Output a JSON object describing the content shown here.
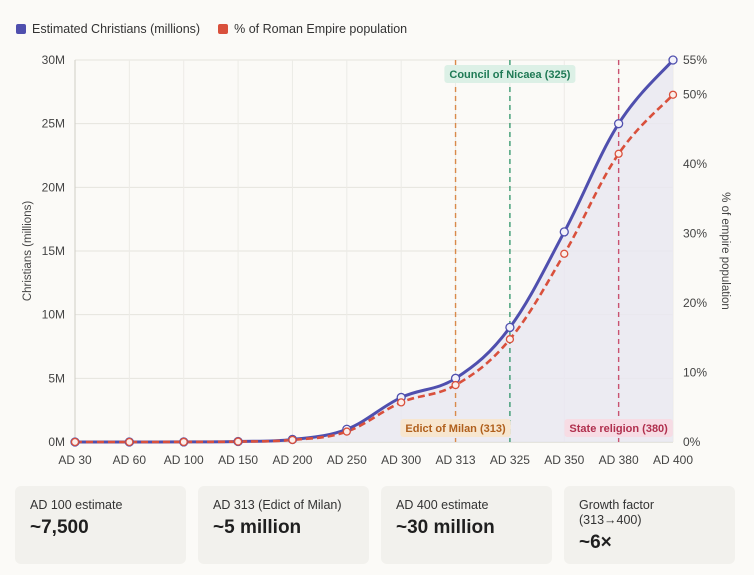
{
  "legend": {
    "items": [
      {
        "label": "Estimated Christians (millions)",
        "color": "#4f4fae"
      },
      {
        "label": "% of Roman Empire population",
        "color": "#d9503c"
      }
    ]
  },
  "chart_data": {
    "type": "line",
    "categories": [
      "AD 30",
      "AD 60",
      "AD 100",
      "AD 150",
      "AD 200",
      "AD 250",
      "AD 300",
      "AD 313",
      "AD 325",
      "AD 350",
      "AD 380",
      "AD 400"
    ],
    "series": [
      {
        "name": "Estimated Christians (millions)",
        "axis": "left",
        "color": "#4f4fae",
        "fill": "#e9e8f1",
        "style": "solid",
        "values": [
          1e-05,
          1e-05,
          0.0075,
          0.04,
          0.2,
          1.0,
          3.5,
          5,
          9,
          16.5,
          25,
          30
        ]
      },
      {
        "name": "% of Roman Empire population",
        "axis": "right",
        "color": "#d9503c",
        "style": "dashed",
        "values": [
          0,
          0,
          0.01,
          0.06,
          0.3,
          1.5,
          5.7,
          8.2,
          14.8,
          27.1,
          41.5,
          50
        ]
      }
    ],
    "ylabel": "Christians (millions)",
    "y2label": "% of empire population",
    "ylim": [
      0,
      30
    ],
    "y2lim": [
      0,
      55
    ],
    "yticks": [
      "0M",
      "5M",
      "10M",
      "15M",
      "20M",
      "25M",
      "30M"
    ],
    "y2ticks": [
      "0%",
      "10%",
      "20%",
      "30%",
      "40%",
      "50%",
      "55%"
    ],
    "annotations": [
      {
        "label": "Edict of Milan (313)",
        "at": "AD 313",
        "color": "#d98a4a",
        "text_color": "#b0601d",
        "bg": "#f7e6cf",
        "pos": "bottom"
      },
      {
        "label": "Council of Nicaea (325)",
        "at": "AD 325",
        "color": "#3a9a72",
        "text_color": "#1f7a55",
        "bg": "#dcf0e6",
        "pos": "top"
      },
      {
        "label": "State religion (380)",
        "at": "AD 380",
        "color": "#c95270",
        "text_color": "#b0304e",
        "bg": "#f7dce4",
        "pos": "bottom"
      }
    ],
    "grid": true,
    "legend_position": "top-left"
  },
  "cards": [
    {
      "label": "AD 100 estimate",
      "value": "~7,500"
    },
    {
      "label": "AD 313 (Edict of Milan)",
      "value": "~5 million"
    },
    {
      "label": "AD 400 estimate",
      "value": "~30 million"
    },
    {
      "label": "Growth factor (313→400)",
      "value": "~6×"
    }
  ]
}
